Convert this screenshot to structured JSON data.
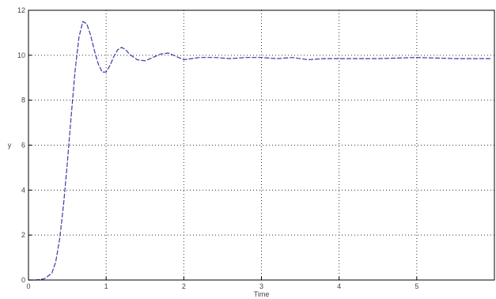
{
  "chart_data": {
    "type": "line",
    "title": "",
    "xlabel": "Time",
    "ylabel": "y",
    "xlim": [
      0,
      6
    ],
    "ylim": [
      0,
      12
    ],
    "xticks": [
      0,
      1,
      2,
      3,
      4,
      5
    ],
    "yticks": [
      0,
      2,
      4,
      6,
      8,
      10,
      12
    ],
    "xtick_labels": [
      "0",
      "1",
      "2",
      "3",
      "4",
      "5"
    ],
    "ytick_labels": [
      "0",
      "2",
      "4",
      "6",
      "8",
      "10",
      "12"
    ],
    "grid": true,
    "line_color": "#3a3aa8",
    "series": [
      {
        "x": [
          0,
          0.1,
          0.2,
          0.3,
          0.35,
          0.4,
          0.45,
          0.5,
          0.55,
          0.6,
          0.65,
          0.7,
          0.75,
          0.8,
          0.85,
          0.9,
          0.95,
          1.0,
          1.05,
          1.1,
          1.15,
          1.2,
          1.25,
          1.3,
          1.4,
          1.5,
          1.6,
          1.7,
          1.8,
          1.9,
          2.0,
          2.1,
          2.2,
          2.4,
          2.6,
          2.8,
          3.0,
          3.2,
          3.4,
          3.6,
          3.8,
          4.0,
          4.5,
          5.0,
          5.5,
          5.95
        ],
        "y": [
          0,
          0,
          0.05,
          0.3,
          0.8,
          1.8,
          3.3,
          5.2,
          7.3,
          9.3,
          10.8,
          11.5,
          11.4,
          10.9,
          10.2,
          9.6,
          9.25,
          9.25,
          9.55,
          9.95,
          10.25,
          10.35,
          10.25,
          10.05,
          9.8,
          9.75,
          9.9,
          10.05,
          10.1,
          9.95,
          9.8,
          9.85,
          9.9,
          9.9,
          9.85,
          9.9,
          9.9,
          9.85,
          9.9,
          9.8,
          9.85,
          9.85,
          9.85,
          9.9,
          9.85,
          9.85
        ]
      }
    ]
  }
}
